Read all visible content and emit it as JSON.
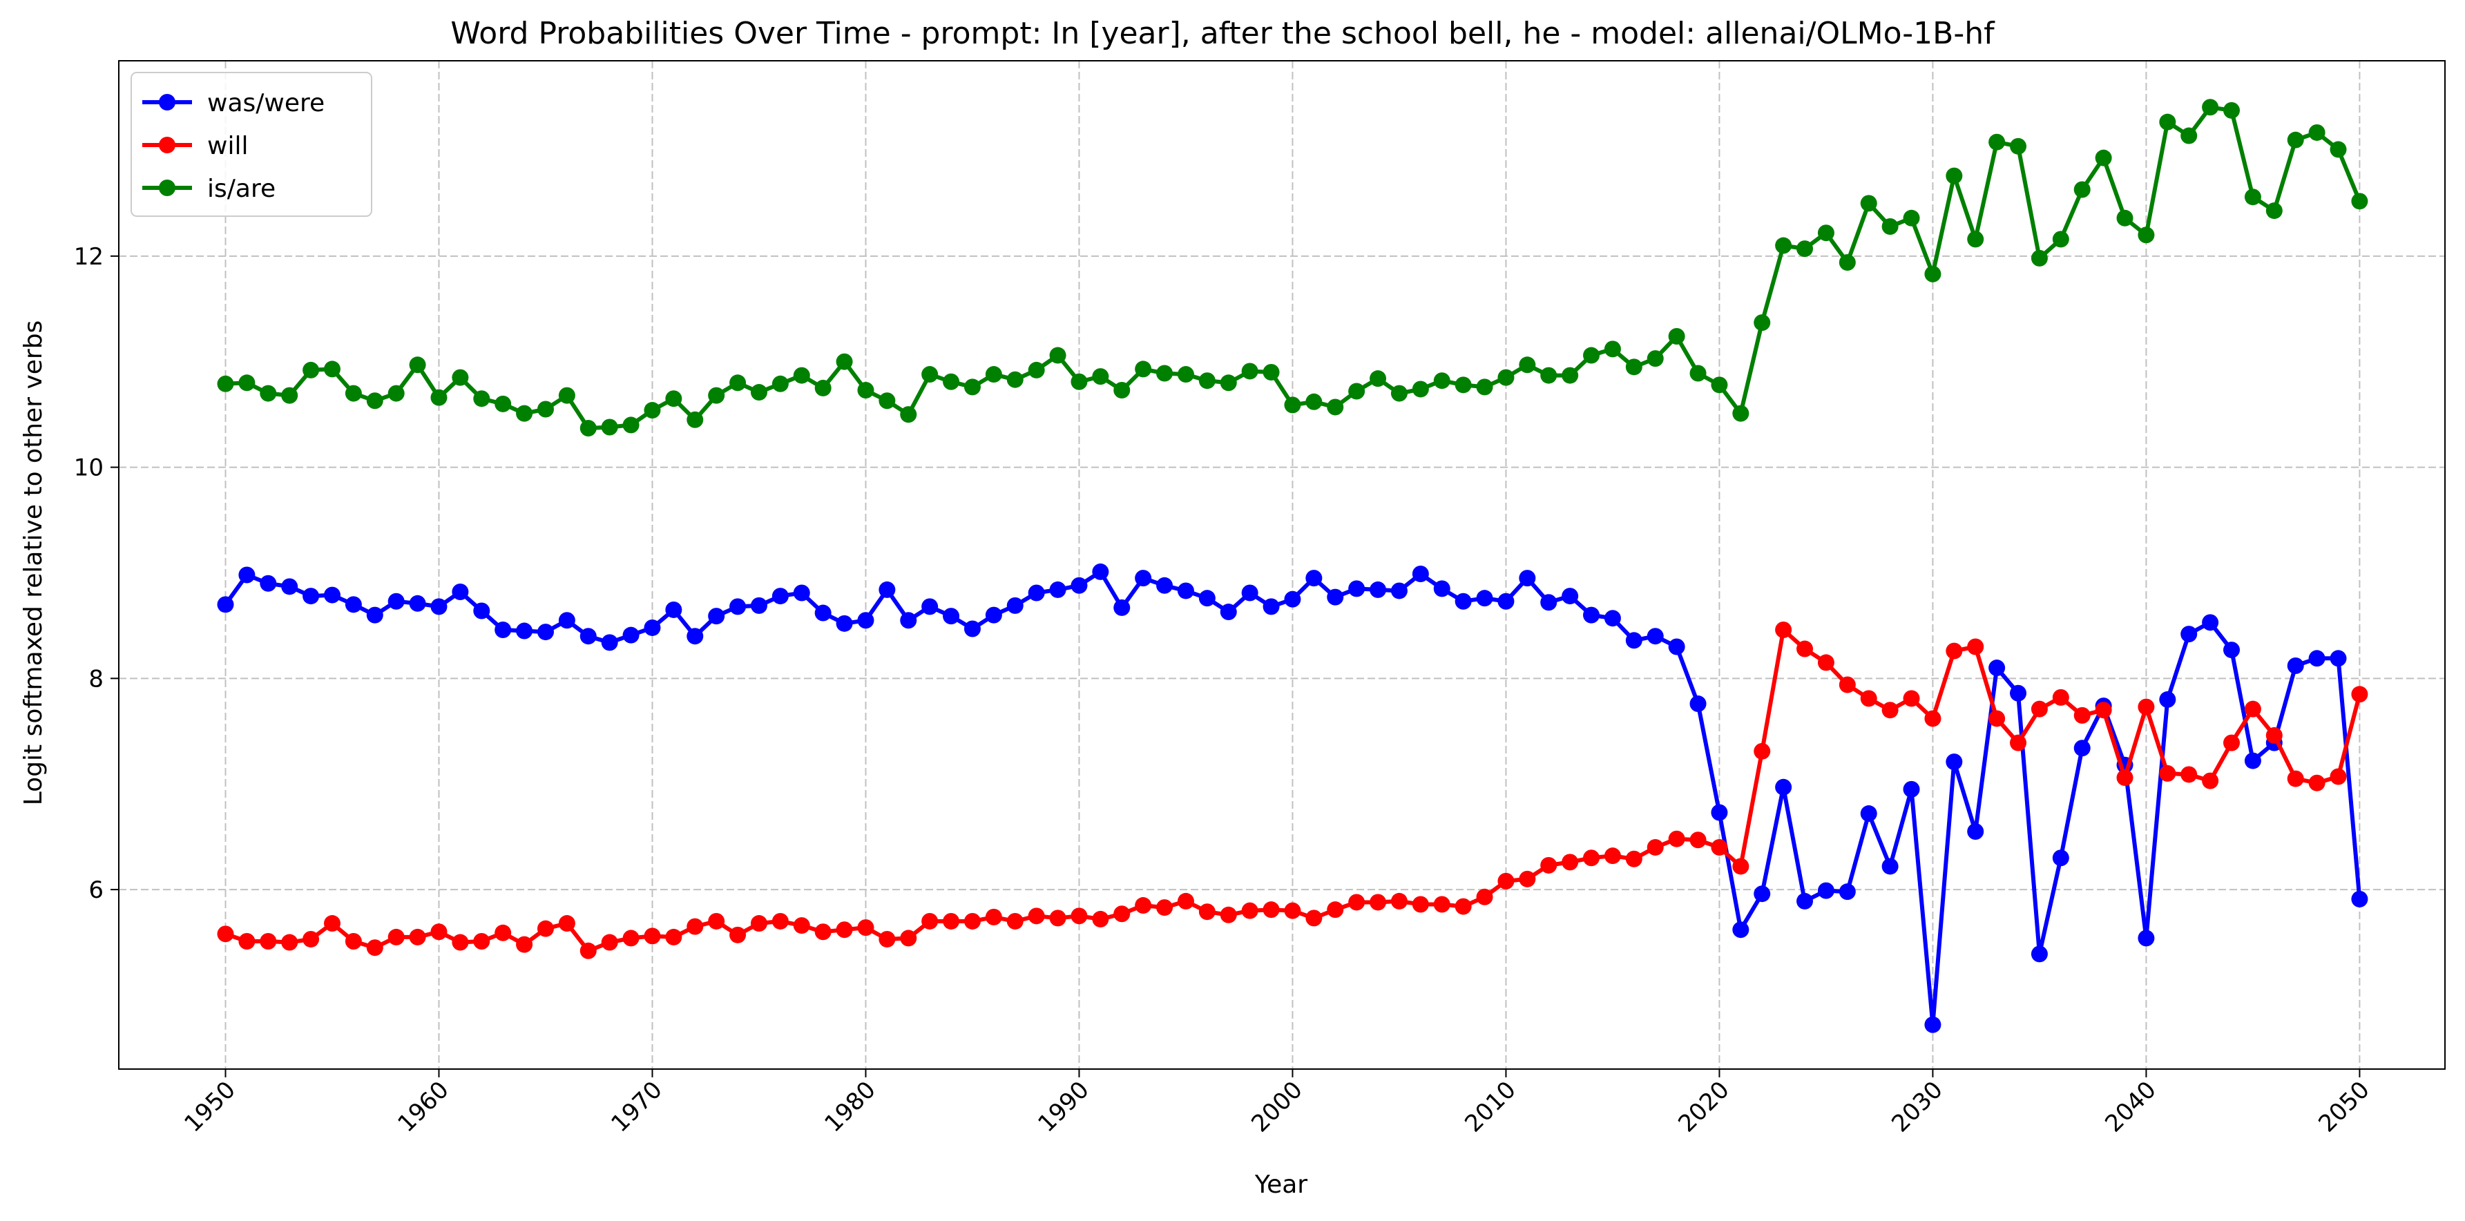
{
  "chart_data": {
    "type": "line",
    "title": "Word Probabilities Over Time - prompt: In [year], after the school bell, he - model: allenai/OLMo-1B-hf",
    "xlabel": "Year",
    "ylabel": "Logit softmaxed relative to other verbs",
    "xlim": [
      1945,
      2054
    ],
    "ylim": [
      4.3,
      13.85
    ],
    "xticks": [
      1950,
      1960,
      1970,
      1980,
      1990,
      2000,
      2010,
      2020,
      2030,
      2040,
      2050
    ],
    "yticks": [
      6,
      8,
      10,
      12
    ],
    "grid": true,
    "legend_position": "top-left",
    "x_start": 1950,
    "series": [
      {
        "name": "was/were",
        "color": "#0000ff",
        "values": [
          8.7,
          8.98,
          8.9,
          8.87,
          8.78,
          8.79,
          8.7,
          8.6,
          8.73,
          8.71,
          8.68,
          8.82,
          8.64,
          8.46,
          8.45,
          8.44,
          8.55,
          8.4,
          8.34,
          8.41,
          8.48,
          8.65,
          8.4,
          8.59,
          8.68,
          8.69,
          8.78,
          8.81,
          8.62,
          8.52,
          8.55,
          8.84,
          8.55,
          8.68,
          8.59,
          8.47,
          8.6,
          8.69,
          8.81,
          8.84,
          8.88,
          9.01,
          8.67,
          8.95,
          8.88,
          8.83,
          8.76,
          8.63,
          8.81,
          8.68,
          8.75,
          8.95,
          8.77,
          8.85,
          8.84,
          8.83,
          8.99,
          8.85,
          8.73,
          8.76,
          8.73,
          8.95,
          8.72,
          8.78,
          8.6,
          8.57,
          8.36,
          8.4,
          8.3,
          7.76,
          6.73,
          5.62,
          5.96,
          6.97,
          5.89,
          5.99,
          5.98,
          6.72,
          6.22,
          6.95,
          4.72,
          7.21,
          6.55,
          8.1,
          7.86,
          5.39,
          6.3,
          7.34,
          7.74,
          7.18,
          5.54,
          7.8,
          8.42,
          8.53,
          8.27,
          7.22,
          7.39,
          8.12,
          8.19,
          8.19,
          5.91
        ]
      },
      {
        "name": "will",
        "color": "#ff0000",
        "values": [
          5.58,
          5.51,
          5.51,
          5.5,
          5.53,
          5.68,
          5.51,
          5.45,
          5.55,
          5.55,
          5.6,
          5.5,
          5.51,
          5.59,
          5.48,
          5.63,
          5.68,
          5.42,
          5.5,
          5.54,
          5.56,
          5.55,
          5.65,
          5.7,
          5.57,
          5.68,
          5.7,
          5.66,
          5.6,
          5.62,
          5.64,
          5.53,
          5.54,
          5.7,
          5.7,
          5.7,
          5.74,
          5.7,
          5.75,
          5.73,
          5.75,
          5.72,
          5.77,
          5.85,
          5.83,
          5.89,
          5.79,
          5.76,
          5.8,
          5.81,
          5.8,
          5.73,
          5.81,
          5.88,
          5.88,
          5.89,
          5.86,
          5.86,
          5.84,
          5.93,
          6.08,
          6.1,
          6.23,
          6.26,
          6.3,
          6.32,
          6.29,
          6.4,
          6.48,
          6.47,
          6.4,
          6.22,
          7.31,
          8.46,
          8.28,
          8.15,
          7.94,
          7.81,
          7.7,
          7.81,
          7.62,
          8.26,
          8.3,
          7.62,
          7.39,
          7.71,
          7.82,
          7.65,
          7.7,
          7.06,
          7.73,
          7.1,
          7.09,
          7.03,
          7.39,
          7.71,
          7.46,
          7.05,
          7.01,
          7.07,
          7.85
        ]
      },
      {
        "name": "is/are",
        "color": "#008000",
        "values": [
          10.79,
          10.8,
          10.7,
          10.68,
          10.92,
          10.93,
          10.7,
          10.63,
          10.7,
          10.97,
          10.66,
          10.85,
          10.65,
          10.6,
          10.51,
          10.55,
          10.68,
          10.37,
          10.38,
          10.4,
          10.54,
          10.65,
          10.45,
          10.68,
          10.8,
          10.71,
          10.79,
          10.87,
          10.75,
          11.0,
          10.73,
          10.63,
          10.5,
          10.88,
          10.81,
          10.76,
          10.88,
          10.83,
          10.92,
          11.06,
          10.81,
          10.86,
          10.73,
          10.93,
          10.89,
          10.88,
          10.82,
          10.8,
          10.91,
          10.9,
          10.59,
          10.62,
          10.57,
          10.72,
          10.84,
          10.7,
          10.74,
          10.82,
          10.78,
          10.76,
          10.85,
          10.97,
          10.87,
          10.87,
          11.06,
          11.12,
          10.95,
          11.03,
          11.24,
          10.89,
          10.78,
          10.51,
          11.37,
          12.1,
          12.07,
          12.22,
          11.94,
          12.5,
          12.28,
          12.36,
          11.83,
          12.76,
          12.16,
          13.08,
          13.04,
          11.98,
          12.16,
          12.63,
          12.93,
          12.36,
          12.2,
          13.27,
          13.14,
          13.41,
          13.38,
          12.56,
          12.43,
          13.1,
          13.17,
          13.01,
          12.52
        ]
      }
    ]
  }
}
